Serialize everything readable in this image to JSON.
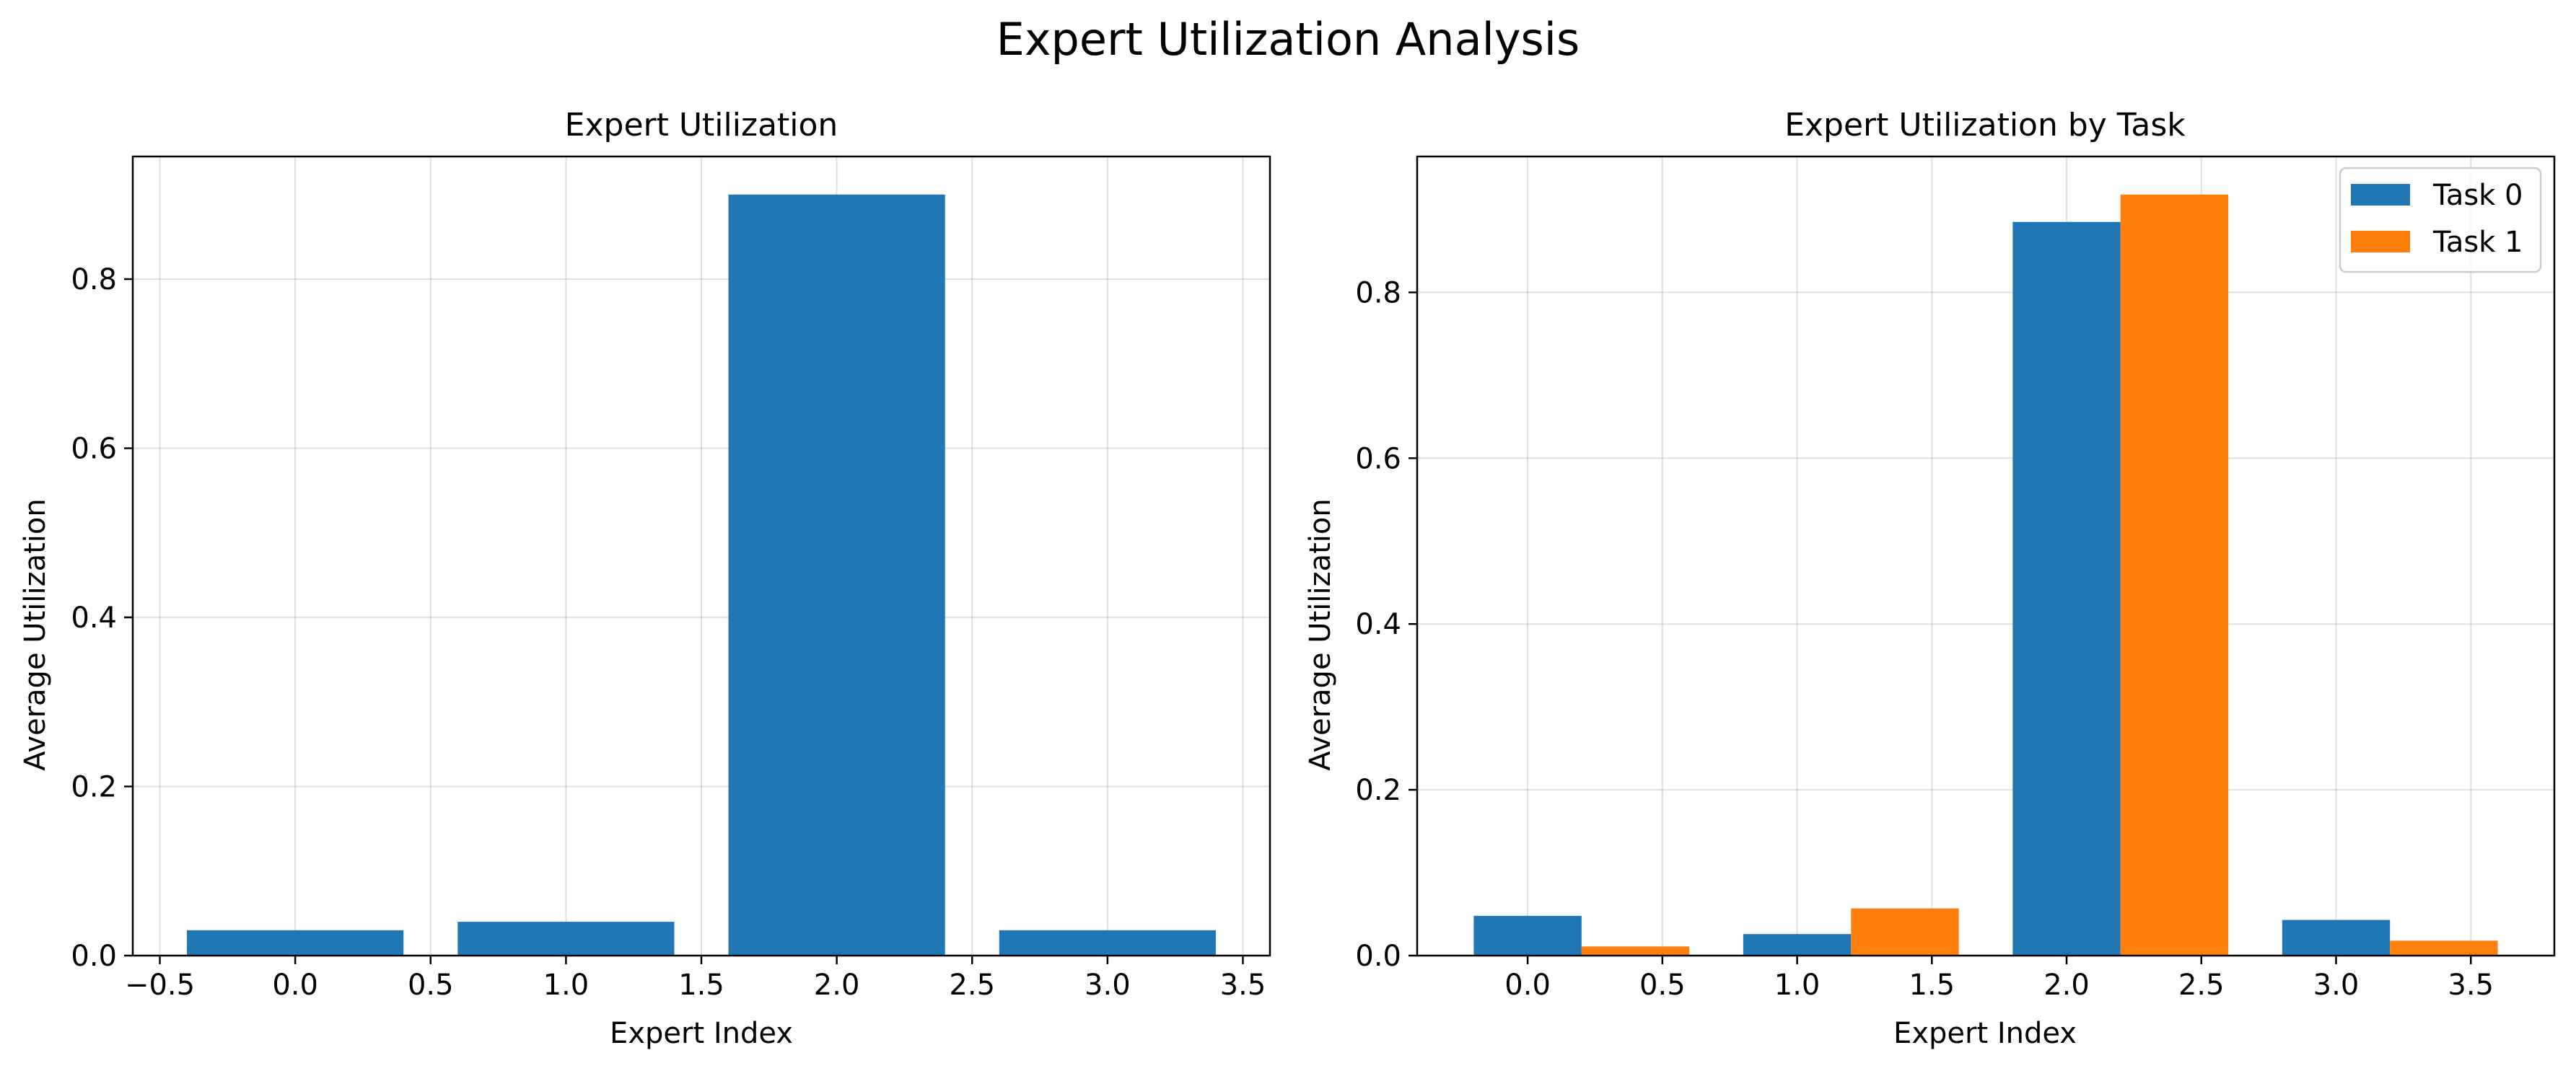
{
  "figure": {
    "title": "Expert Utilization Analysis"
  },
  "chart_data": [
    {
      "type": "bar",
      "title": "Expert Utilization",
      "xlabel": "Expert Index",
      "ylabel": "Average Utilization",
      "x": [
        0,
        1,
        2,
        3
      ],
      "values": [
        0.03,
        0.04,
        0.9,
        0.03
      ],
      "bar_width": 0.8,
      "color": "#1f77b4",
      "xlim": [
        -0.6,
        3.6
      ],
      "ylim": [
        0,
        0.945
      ],
      "xticks": [
        -0.5,
        0.0,
        0.5,
        1.0,
        1.5,
        2.0,
        2.5,
        3.0,
        3.5
      ],
      "xtick_labels": [
        "−0.5",
        "0.0",
        "0.5",
        "1.0",
        "1.5",
        "2.0",
        "2.5",
        "3.0",
        "3.5"
      ],
      "yticks": [
        0.0,
        0.2,
        0.4,
        0.6,
        0.8
      ],
      "ytick_labels": [
        "0.0",
        "0.2",
        "0.4",
        "0.6",
        "0.8"
      ],
      "grid": true
    },
    {
      "type": "bar",
      "title": "Expert Utilization by Task",
      "xlabel": "Expert Index",
      "ylabel": "Average Utilization",
      "x": [
        0,
        1,
        2,
        3
      ],
      "bar_width": 0.4,
      "series": [
        {
          "name": "Task 0",
          "offset": 0,
          "values": [
            0.048,
            0.026,
            0.885,
            0.043
          ],
          "color": "#1f77b4"
        },
        {
          "name": "Task 1",
          "offset": 0.4,
          "values": [
            0.011,
            0.057,
            0.918,
            0.018
          ],
          "color": "#ff7f0e"
        }
      ],
      "xlim": [
        -0.41,
        3.81
      ],
      "ylim": [
        0,
        0.9639
      ],
      "xticks": [
        0.0,
        0.5,
        1.0,
        1.5,
        2.0,
        2.5,
        3.0,
        3.5
      ],
      "xtick_labels": [
        "0.0",
        "0.5",
        "1.0",
        "1.5",
        "2.0",
        "2.5",
        "3.0",
        "3.5"
      ],
      "yticks": [
        0.0,
        0.2,
        0.4,
        0.6,
        0.8
      ],
      "ytick_labels": [
        "0.0",
        "0.2",
        "0.4",
        "0.6",
        "0.8"
      ],
      "grid": true,
      "legend": "top-right"
    }
  ]
}
